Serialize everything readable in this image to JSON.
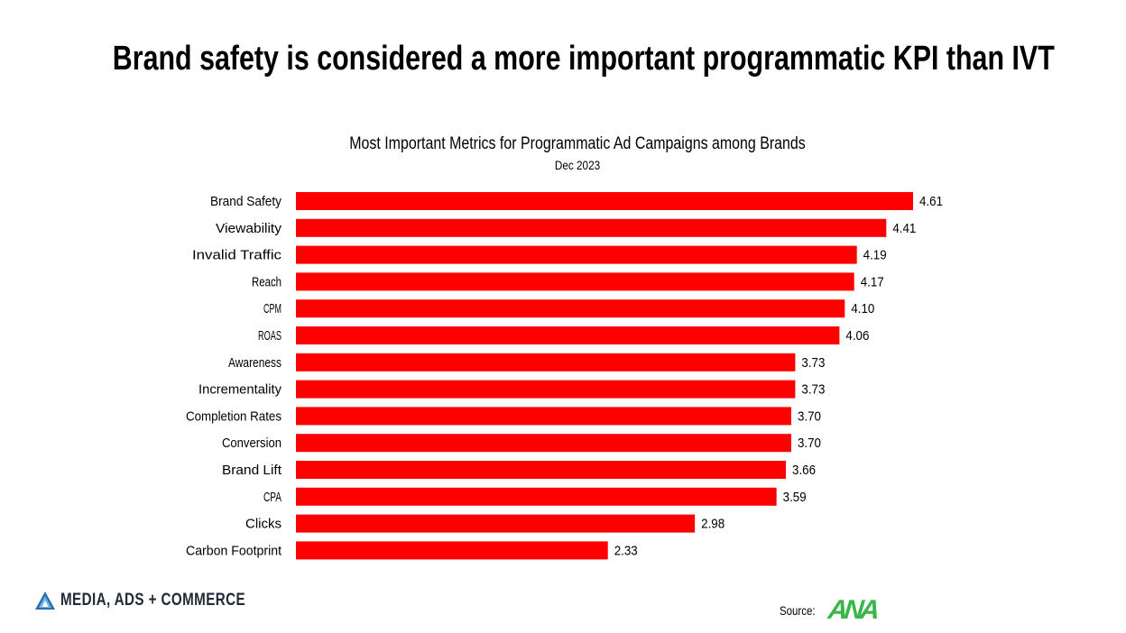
{
  "headline": "Brand safety is considered a more important programmatic KPI than IVT",
  "chart_data": {
    "type": "bar",
    "orientation": "horizontal",
    "title": "Most Important Metrics for Programmatic Ad Campaigns among Brands",
    "subtitle": "Dec 2023",
    "categories": [
      "Brand Safety",
      "Viewability",
      "Invalid Traffic",
      "Reach",
      "CPM",
      "ROAS",
      "Awareness",
      "Incrementality",
      "Completion Rates",
      "Conversion",
      "Brand Lift",
      "CPA",
      "Clicks",
      "Carbon Footprint"
    ],
    "values": [
      4.61,
      4.41,
      4.19,
      4.17,
      4.1,
      4.06,
      3.73,
      3.73,
      3.7,
      3.7,
      3.66,
      3.59,
      2.98,
      2.33
    ],
    "value_labels": [
      "4.61",
      "4.41",
      "4.19",
      "4.17",
      "4.10",
      "4.06",
      "3.73",
      "3.73",
      "3.70",
      "3.70",
      "3.66",
      "3.59",
      "2.98",
      "2.33"
    ],
    "xlim": [
      0,
      4.61
    ],
    "bar_color": "#ff0000",
    "grid": false,
    "legend": "none"
  },
  "footer": {
    "brand": "MEDIA, ADS + COMMERCE",
    "brand_icon": "triangle-logo-icon",
    "source_label": "Source:",
    "source_logo": "ANA",
    "source_logo_color": "#39b54a"
  }
}
